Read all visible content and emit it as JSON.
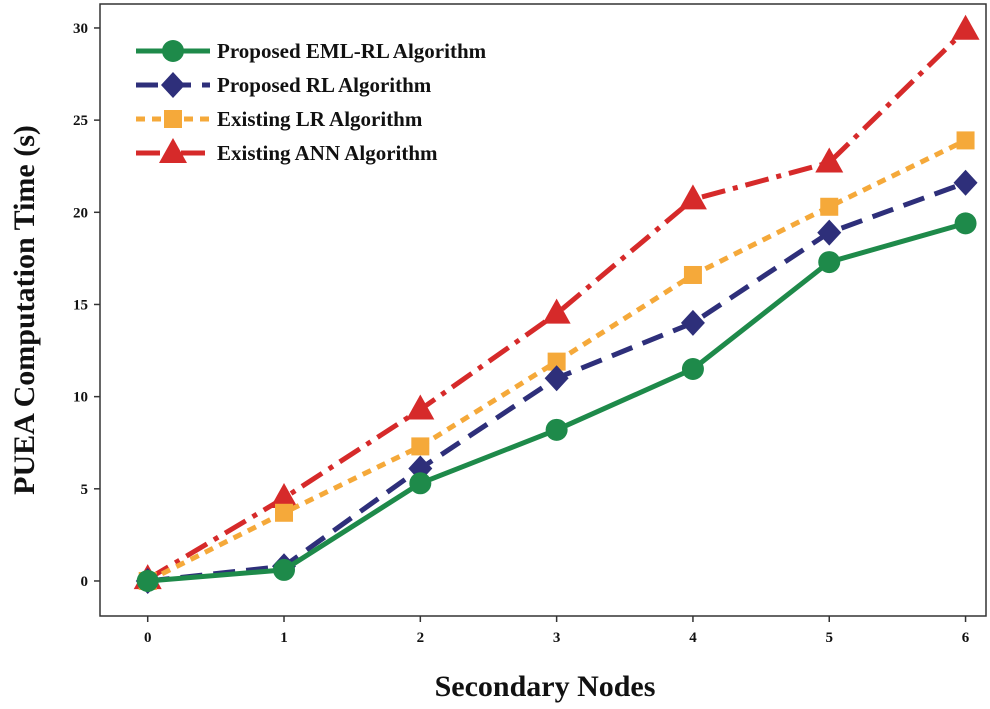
{
  "chart_data": {
    "type": "line",
    "xlabel": "Secondary Nodes",
    "ylabel": "PUEA Computation Time (s)",
    "x": [
      0,
      1,
      2,
      3,
      4,
      5,
      6
    ],
    "xlim": [
      -0.35,
      6.15
    ],
    "ylim": [
      -1.9,
      31.3
    ],
    "xticks": [
      "0",
      "1",
      "2",
      "3",
      "4",
      "5",
      "6"
    ],
    "yticks": [
      "0",
      "5",
      "10",
      "15",
      "20",
      "25",
      "30"
    ],
    "grid": false,
    "legend_position": "top-left",
    "series": [
      {
        "name": "Proposed EML-RL Algorithm",
        "values": [
          0,
          0.6,
          5.3,
          8.2,
          11.5,
          17.3,
          19.4
        ],
        "color": "#1e8a4a",
        "marker": "circle",
        "dash": "solid"
      },
      {
        "name": "Proposed RL Algorithm",
        "values": [
          0,
          0.8,
          6.1,
          11.0,
          14.0,
          18.9,
          21.6
        ],
        "color": "#2e2f7a",
        "marker": "diamond",
        "dash": "dashed"
      },
      {
        "name": "Existing LR Algorithm",
        "values": [
          0,
          3.7,
          7.3,
          11.9,
          16.6,
          20.3,
          23.9
        ],
        "color": "#f5a93a",
        "marker": "square",
        "dash": "dotted"
      },
      {
        "name": "Existing ANN Algorithm",
        "values": [
          0.1,
          4.5,
          9.3,
          14.5,
          20.7,
          22.7,
          29.9
        ],
        "color": "#d62a2a",
        "marker": "triangle",
        "dash": "dashdot"
      }
    ]
  }
}
